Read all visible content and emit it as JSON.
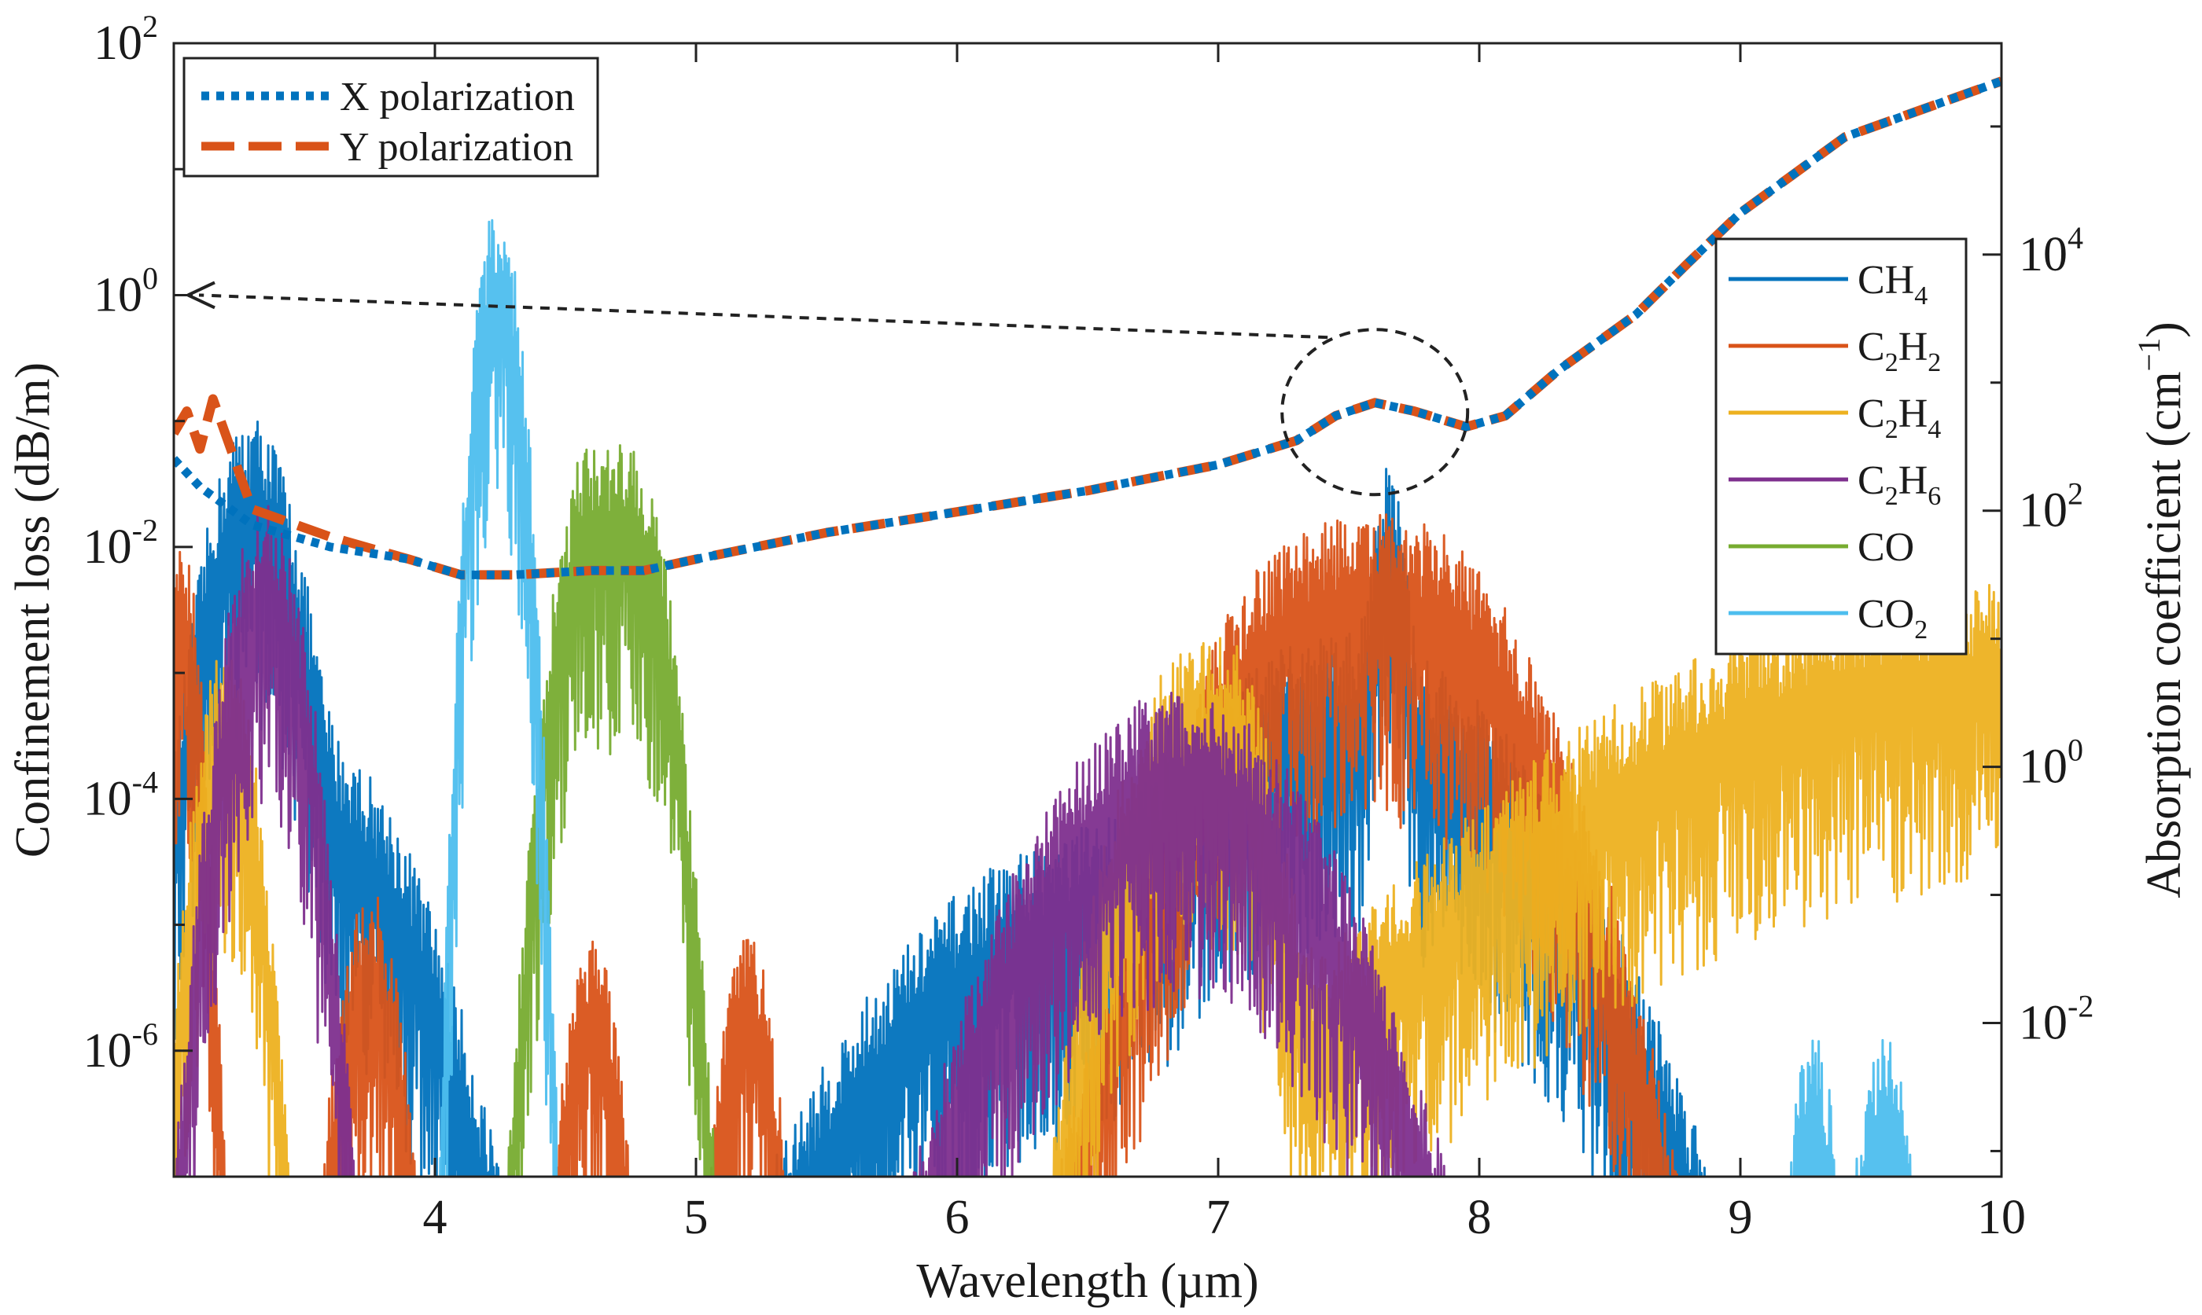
{
  "chart_data": {
    "type": "line",
    "xlabel": "Wavelength (µm)",
    "ylabel_left": "Confinement loss (dB/m)",
    "ylabel_right_main": "Absorption coefficient (cm",
    "ylabel_right_sup": "−1",
    "ylabel_right_close": ")",
    "xlim": [
      3,
      10
    ],
    "ylim_left_log10": [
      -7,
      2
    ],
    "ylim_right_log10": [
      -3.2,
      5.65
    ],
    "x_ticks": [
      "4",
      "5",
      "6",
      "7",
      "8",
      "9",
      "10"
    ],
    "x_tick_values": [
      4,
      5,
      6,
      7,
      8,
      9,
      10
    ],
    "y_left_ticks": [
      {
        "base": "10",
        "exp": "2",
        "value": 2
      },
      {
        "base": "10",
        "exp": "0",
        "value": 0
      },
      {
        "base": "10",
        "exp": "-2",
        "value": -2
      },
      {
        "base": "10",
        "exp": "-4",
        "value": -4
      },
      {
        "base": "10",
        "exp": "-6",
        "value": -6
      }
    ],
    "y_right_ticks": [
      {
        "base": "10",
        "exp": "4",
        "value": 4
      },
      {
        "base": "10",
        "exp": "2",
        "value": 2
      },
      {
        "base": "10",
        "exp": "0",
        "value": 0
      },
      {
        "base": "10",
        "exp": "-2",
        "value": -2
      }
    ],
    "loss_series": [
      {
        "name": "X polarization",
        "color": "#0072BD",
        "style": "dotted",
        "x": [
          3.0,
          3.1,
          3.3,
          3.6,
          3.9,
          4.1,
          4.3,
          4.6,
          4.8,
          5.0,
          5.5,
          6.0,
          6.5,
          7.0,
          7.3,
          7.45,
          7.6,
          7.75,
          7.95,
          8.1,
          8.3,
          8.6,
          8.8,
          9.0,
          9.2,
          9.4,
          9.7,
          10.0
        ],
        "y": [
          0.05,
          0.03,
          0.015,
          0.01,
          0.008,
          0.006,
          0.006,
          0.0065,
          0.0065,
          0.008,
          0.013,
          0.019,
          0.028,
          0.045,
          0.07,
          0.11,
          0.14,
          0.12,
          0.09,
          0.11,
          0.25,
          0.7,
          1.8,
          4.5,
          9,
          18,
          30,
          50
        ]
      },
      {
        "name": "Y polarization",
        "color": "#D95319",
        "style": "dashed",
        "x": [
          3.0,
          3.05,
          3.1,
          3.15,
          3.3,
          3.6,
          3.9,
          4.1,
          4.3,
          4.6,
          4.8,
          5.0,
          5.5,
          6.0,
          6.5,
          7.0,
          7.3,
          7.45,
          7.6,
          7.75,
          7.95,
          8.1,
          8.3,
          8.6,
          8.8,
          9.0,
          9.2,
          9.4,
          9.7,
          10.0
        ],
        "y": [
          0.08,
          0.12,
          0.06,
          0.15,
          0.02,
          0.012,
          0.008,
          0.006,
          0.006,
          0.0065,
          0.0065,
          0.008,
          0.013,
          0.019,
          0.028,
          0.045,
          0.07,
          0.11,
          0.14,
          0.12,
          0.09,
          0.11,
          0.25,
          0.7,
          1.8,
          4.5,
          9,
          18,
          30,
          50
        ]
      }
    ],
    "absorption_series": [
      {
        "name": "CH",
        "sub": "4",
        "color": "#0072BD",
        "bands": [
          {
            "center": 3.3,
            "width": 0.12,
            "peak": 100
          },
          {
            "center": 3.55,
            "width": 0.25,
            "peak": 0.3
          },
          {
            "center": 6.5,
            "width": 0.5,
            "peak": 0.05
          },
          {
            "center": 7.5,
            "width": 0.45,
            "peak": 2
          },
          {
            "center": 7.65,
            "width": 0.05,
            "peak": 40
          }
        ]
      },
      {
        "name": "C",
        "sub": "2",
        "name2": "H",
        "sub2": "2",
        "color": "#D95319",
        "bands": [
          {
            "center": 3.03,
            "width": 0.05,
            "peak": 10
          },
          {
            "center": 3.75,
            "width": 0.08,
            "peak": 0.02
          },
          {
            "center": 4.6,
            "width": 0.07,
            "peak": 0.01
          },
          {
            "center": 5.2,
            "width": 0.07,
            "peak": 0.01
          },
          {
            "center": 7.4,
            "width": 0.3,
            "peak": 12
          },
          {
            "center": 7.75,
            "width": 0.3,
            "peak": 12
          }
        ]
      },
      {
        "name": "C",
        "sub": "2",
        "name2": "H",
        "sub2": "4",
        "color": "#EDB120",
        "bands": [
          {
            "center": 3.2,
            "width": 0.08,
            "peak": 1.5
          },
          {
            "center": 6.9,
            "width": 0.18,
            "peak": 1.5
          },
          {
            "center": 7.05,
            "width": 0.1,
            "peak": 1
          },
          {
            "center": 10.0,
            "width": 1.0,
            "peak": 5
          }
        ]
      },
      {
        "name": "C",
        "sub": "2",
        "name2": "H",
        "sub2": "6",
        "color": "#7E2F8E",
        "bands": [
          {
            "center": 3.35,
            "width": 0.1,
            "peak": 20
          },
          {
            "center": 6.85,
            "width": 0.35,
            "peak": 0.7
          }
        ]
      },
      {
        "name": "CO",
        "color": "#77AC30",
        "bands": [
          {
            "center": 4.6,
            "width": 0.09,
            "peak": 60
          },
          {
            "center": 4.75,
            "width": 0.09,
            "peak": 60
          }
        ]
      },
      {
        "name": "CO",
        "sub": "2",
        "color": "#4DBEEE",
        "bands": [
          {
            "center": 4.22,
            "width": 0.05,
            "peak": 3000
          },
          {
            "center": 4.27,
            "width": 0.05,
            "peak": 2000
          },
          {
            "center": 9.28,
            "width": 0.06,
            "peak": 0.0015
          },
          {
            "center": 9.55,
            "width": 0.07,
            "peak": 0.0015
          }
        ]
      }
    ],
    "annotation": {
      "type": "zoom-circle-with-arrow",
      "circle_center_x": 7.6,
      "circle_center_loss": 0.14,
      "arrow_target_x": 3.0,
      "arrow_target_loss": 1.0
    },
    "legend_loss": [
      "X polarization",
      "Y polarization"
    ],
    "legend_absorption": [
      "CH4",
      "C2H2",
      "C2H4",
      "C2H6",
      "CO",
      "CO2"
    ]
  }
}
